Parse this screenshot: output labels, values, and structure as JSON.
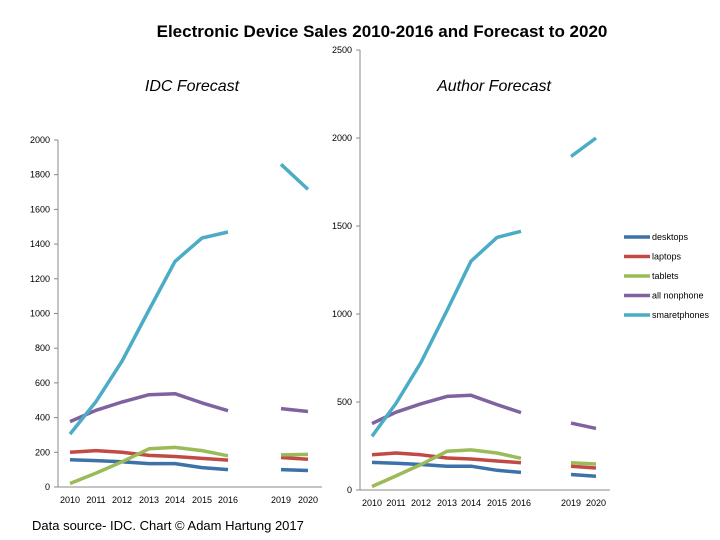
{
  "title": "Electronic Device Sales 2010-2016 and Forecast to 2020",
  "source": "Data source- IDC.  Chart © Adam Hartung 2017",
  "legend": [
    {
      "key": "desktops",
      "label": "desktops",
      "color": "#3d72a8"
    },
    {
      "key": "laptops",
      "label": "laptops",
      "color": "#c24a44"
    },
    {
      "key": "tablets",
      "label": "tablets",
      "color": "#9bbb59"
    },
    {
      "key": "nonphone",
      "label": "all nonphone",
      "color": "#7f63a1"
    },
    {
      "key": "smartphones",
      "label": "smaretphones",
      "color": "#4bacc6"
    }
  ],
  "chart_data": [
    {
      "type": "line",
      "title": "IDC Forecast",
      "xlabel": "",
      "ylabel": "",
      "categories": [
        "2010",
        "2011",
        "2012",
        "2013",
        "2014",
        "2015",
        "2016",
        "2019",
        "2020"
      ],
      "ylim": [
        0,
        2000
      ],
      "yticks": [
        0,
        200,
        400,
        600,
        800,
        1000,
        1200,
        1400,
        1600,
        1800,
        2000
      ],
      "grid": false,
      "series": [
        {
          "key": "desktops",
          "values": [
            157,
            152,
            145,
            135,
            135,
            112,
            100,
            null,
            null
          ],
          "forecast": [
            100,
            95
          ]
        },
        {
          "key": "laptops",
          "values": [
            200,
            210,
            200,
            182,
            176,
            165,
            155,
            null,
            null
          ],
          "forecast": [
            170,
            160
          ]
        },
        {
          "key": "tablets",
          "values": [
            20,
            80,
            145,
            220,
            228,
            210,
            180,
            null,
            null
          ],
          "forecast": [
            185,
            188
          ]
        },
        {
          "key": "nonphone",
          "values": [
            377,
            442,
            490,
            532,
            538,
            485,
            440,
            null,
            null
          ],
          "forecast": [
            452,
            435
          ]
        },
        {
          "key": "smartphones",
          "values": [
            305,
            492,
            725,
            1020,
            1300,
            1435,
            1470,
            null,
            null
          ],
          "forecast": [
            1860,
            1715
          ]
        }
      ]
    },
    {
      "type": "line",
      "title": "Author Forecast",
      "xlabel": "",
      "ylabel": "",
      "categories": [
        "2010",
        "2011",
        "2012",
        "2013",
        "2014",
        "2015",
        "2016",
        "2019",
        "2020"
      ],
      "ylim": [
        0,
        2500
      ],
      "yticks": [
        0,
        500,
        1000,
        1500,
        2000,
        2500
      ],
      "grid": false,
      "series": [
        {
          "key": "desktops",
          "values": [
            157,
            152,
            145,
            135,
            135,
            112,
            100,
            null,
            null
          ],
          "forecast": [
            88,
            78
          ]
        },
        {
          "key": "laptops",
          "values": [
            200,
            210,
            200,
            182,
            176,
            165,
            155,
            null,
            null
          ],
          "forecast": [
            135,
            125
          ]
        },
        {
          "key": "tablets",
          "values": [
            20,
            80,
            145,
            220,
            228,
            210,
            180,
            null,
            null
          ],
          "forecast": [
            155,
            148
          ]
        },
        {
          "key": "nonphone",
          "values": [
            377,
            442,
            490,
            532,
            538,
            485,
            440,
            null,
            null
          ],
          "forecast": [
            380,
            350
          ]
        },
        {
          "key": "smartphones",
          "values": [
            305,
            492,
            725,
            1020,
            1300,
            1435,
            1470,
            null,
            null
          ],
          "forecast": [
            1895,
            2000
          ]
        }
      ]
    }
  ]
}
